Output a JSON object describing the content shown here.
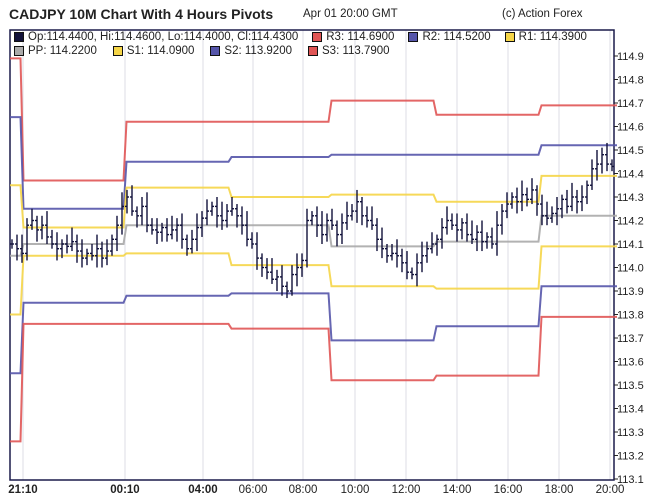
{
  "header": {
    "title": "CADJPY 10M Chart With 4 Hours Pivots",
    "timestamp": "Apr 01 20:00 GMT",
    "credit": "(c) Action Forex"
  },
  "legend": [
    {
      "label": "Op:114.4400, Hi:114.4600, Lo:114.4000, Cl:114.4300",
      "color": "#11113a"
    },
    {
      "label": "R3: 114.6900",
      "color": "#e05555"
    },
    {
      "label": "R2: 114.5200",
      "color": "#5555aa"
    },
    {
      "label": "R1: 114.3900",
      "color": "#f5d547"
    },
    {
      "label": "PP: 114.2200",
      "color": "#aaaaaa"
    },
    {
      "label": "S1: 114.0900",
      "color": "#f5d547"
    },
    {
      "label": "S2: 113.9200",
      "color": "#5555aa"
    },
    {
      "label": "S3: 113.7900",
      "color": "#e05555"
    }
  ],
  "chart_data": {
    "type": "ohlc",
    "title": "CADJPY 10M Chart With 4 Hours Pivots",
    "ylim": [
      113.1,
      114.9
    ],
    "yticks": [
      "114.9",
      "114.8",
      "114.7",
      "114.6",
      "114.5",
      "114.4",
      "114.3",
      "114.2",
      "114.1",
      "114.0",
      "113.9",
      "113.8",
      "113.7",
      "113.6",
      "113.5",
      "113.4",
      "113.3",
      "113.2",
      "113.1"
    ],
    "xticks": [
      {
        "label": "21:10",
        "bar": 2.2,
        "bold": true
      },
      {
        "label": "00:10",
        "bar": 22.6,
        "bold": true
      },
      {
        "label": "04:00",
        "bar": 38.2,
        "bold": true
      },
      {
        "label": "06:00",
        "bar": 48.2
      },
      {
        "label": "08:00",
        "bar": 58.2
      },
      {
        "label": "10:00",
        "bar": 68.6
      },
      {
        "label": "12:00",
        "bar": 78.8
      },
      {
        "label": "14:00",
        "bar": 89
      },
      {
        "label": "16:00",
        "bar": 99.2
      },
      {
        "label": "18:00",
        "bar": 109.4
      },
      {
        "label": "20:00",
        "bar": 119.6
      }
    ],
    "close": [
      114.1,
      114.08,
      114.06,
      114.18,
      114.2,
      114.16,
      114.18,
      114.13,
      114.1,
      114.08,
      114.1,
      114.09,
      114.11,
      114.07,
      114.04,
      114.06,
      114.05,
      114.08,
      114.04,
      114.07,
      114.12,
      114.18,
      114.26,
      114.3,
      114.24,
      114.22,
      114.26,
      114.18,
      114.16,
      114.15,
      114.17,
      114.14,
      114.16,
      114.18,
      114.12,
      114.08,
      114.12,
      114.17,
      114.21,
      114.24,
      114.26,
      114.22,
      114.2,
      114.24,
      114.25,
      114.22,
      114.18,
      114.12,
      114.1,
      114.04,
      114.0,
      113.98,
      113.95,
      113.96,
      113.92,
      113.9,
      113.97,
      114.0,
      114.03,
      114.2,
      114.22,
      114.18,
      114.14,
      114.2,
      114.18,
      114.14,
      114.19,
      114.22,
      114.24,
      114.28,
      114.22,
      114.2,
      114.18,
      114.12,
      114.08,
      114.05,
      114.06,
      114.05,
      114.02,
      113.98,
      113.97,
      114.02,
      114.05,
      114.08,
      114.1,
      114.12,
      114.17,
      114.2,
      114.18,
      114.16,
      114.19,
      114.14,
      114.12,
      114.15,
      114.11,
      114.13,
      114.1,
      114.18,
      114.24,
      114.27,
      114.3,
      114.28,
      114.31,
      114.29,
      114.33,
      114.27,
      114.22,
      114.21,
      114.23,
      114.25,
      114.29,
      114.26,
      114.3,
      114.28,
      114.3,
      114.35,
      114.42,
      114.44,
      114.48,
      114.44,
      114.43
    ],
    "pivot_period_starts": [
      0,
      2,
      22.6,
      43.6,
      63.6,
      84.6,
      105.6
    ],
    "pivots": [
      {
        "name": "R3",
        "color": "#e05555",
        "values": [
          114.89,
          114.37,
          114.62,
          114.62,
          114.71,
          114.65,
          114.69
        ]
      },
      {
        "name": "R2",
        "color": "#5555aa",
        "values": [
          114.64,
          114.25,
          114.45,
          114.47,
          114.48,
          114.48,
          114.52
        ]
      },
      {
        "name": "R1",
        "color": "#f5d547",
        "values": [
          114.35,
          114.17,
          114.34,
          114.3,
          114.31,
          114.28,
          114.39
        ]
      },
      {
        "name": "PP",
        "color": "#aaaaaa",
        "values": [
          114.05,
          114.1,
          114.18,
          114.18,
          114.09,
          114.11,
          114.22
        ]
      },
      {
        "name": "S1",
        "color": "#f5d547",
        "values": [
          113.8,
          114.05,
          114.06,
          114.01,
          113.92,
          113.91,
          114.09
        ]
      },
      {
        "name": "S2",
        "color": "#5555aa",
        "values": [
          113.55,
          113.85,
          113.88,
          113.89,
          113.69,
          113.75,
          113.92
        ]
      },
      {
        "name": "S3",
        "color": "#e05555",
        "values": [
          113.26,
          113.76,
          113.76,
          113.74,
          113.52,
          113.54,
          113.79
        ]
      }
    ]
  }
}
